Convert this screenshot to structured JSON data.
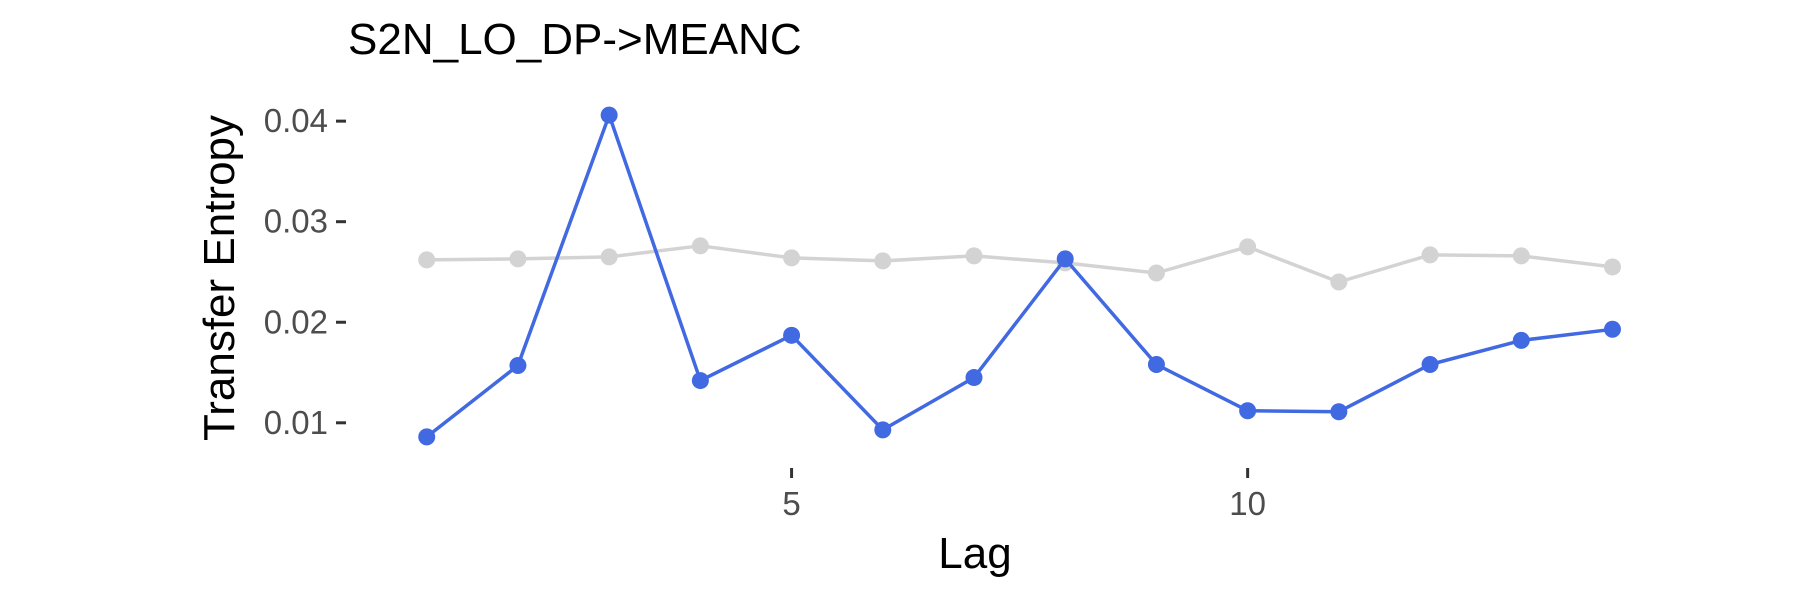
{
  "chart_data": {
    "type": "line",
    "title": "S2N_LO_DP->MEANC",
    "xlabel": "Lag",
    "ylabel": "Transfer Entropy",
    "xlim": [
      0.4,
      13.6
    ],
    "ylim": [
      0.0065,
      0.0425
    ],
    "xticks": [
      5,
      10
    ],
    "yticks": [
      0.01,
      0.02,
      0.03,
      0.04
    ],
    "ytick_labels": [
      "0.01",
      "0.02",
      "0.03",
      "0.04"
    ],
    "xtick_labels": [
      "5",
      "10"
    ],
    "grid": false,
    "legend": "none",
    "x": [
      1,
      2,
      3,
      4,
      5,
      6,
      7,
      8,
      9,
      10,
      11,
      12,
      13,
      14
    ],
    "series": [
      {
        "color": "#d3d3d3",
        "values": [
          0.0262,
          0.0263,
          0.0265,
          0.0276,
          0.0264,
          0.0261,
          0.0266,
          0.0259,
          0.0249,
          0.0275,
          0.024,
          0.0267,
          0.0266,
          0.0255
        ]
      },
      {
        "color": "#4169e1",
        "values": [
          0.0086,
          0.0157,
          0.0406,
          0.0142,
          0.0187,
          0.0093,
          0.0145,
          0.0263,
          0.0158,
          0.0112,
          0.0111,
          0.0158,
          0.0182,
          0.0193
        ]
      }
    ]
  }
}
